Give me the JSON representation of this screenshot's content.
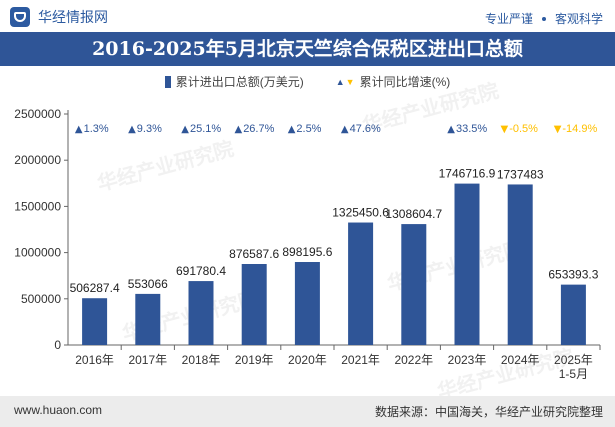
{
  "header": {
    "brand_name": "华经情报网",
    "slogan_left": "专业严谨",
    "slogan_right": "客观科学"
  },
  "title": "2016-2025年5月北京天竺综合保税区进出口总额",
  "legend": {
    "bar_label": "累计进出口总额(万美元)",
    "growth_label": "累计同比增速(%)"
  },
  "colors": {
    "bar": "#2f5597",
    "up": "#2f5597",
    "down": "#ffc000",
    "title_bg": "#2f5597"
  },
  "chart_data": {
    "type": "bar",
    "categories": [
      "2016年",
      "2017年",
      "2018年",
      "2019年",
      "2020年",
      "2021年",
      "2022年",
      "2023年",
      "2024年",
      "2025年\n1-5月"
    ],
    "series": [
      {
        "name": "累计进出口总额(万美元)",
        "values": [
          506287.4,
          553066,
          691780.4,
          876587.6,
          898195.6,
          1325450.6,
          1308604.7,
          1746716.9,
          1737483,
          653393.3
        ],
        "labels": [
          "506287.4",
          "553066",
          "691780.4",
          "876587.6",
          "898195.6",
          "1325450.6",
          "1308604.7",
          "1746716.9",
          "1737483",
          "653393.3"
        ]
      },
      {
        "name": "累计同比增速(%)",
        "values": [
          1.3,
          9.3,
          25.1,
          26.7,
          2.5,
          47.6,
          null,
          33.5,
          -0.5,
          -14.9
        ],
        "labels": [
          "1.3%",
          "9.3%",
          "25.1%",
          "26.7%",
          "2.5%",
          "47.6%",
          "",
          "33.5%",
          "-0.5%",
          "-14.9%"
        ]
      }
    ],
    "yticks": [
      "0",
      "500000",
      "1000000",
      "1500000",
      "2000000",
      "2500000"
    ],
    "ylim": [
      0,
      2500000
    ]
  },
  "footer": {
    "website": "www.huaon.com",
    "source": "数据来源：中国海关，华经产业研究院整理"
  },
  "watermark": "华经产业研究院"
}
